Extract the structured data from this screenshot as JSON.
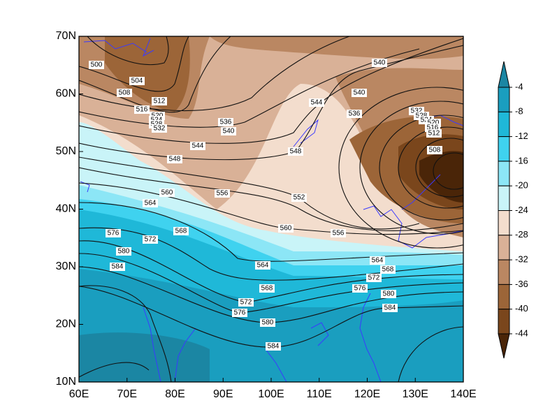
{
  "map": {
    "x_labels": [
      "60E",
      "70E",
      "80E",
      "90E",
      "100E",
      "110E",
      "120E",
      "130E",
      "140E"
    ],
    "y_labels": [
      "10N",
      "20N",
      "30N",
      "40N",
      "50N",
      "60N",
      "70N"
    ],
    "colorbar": {
      "labels": [
        -4,
        -8,
        -12,
        -16,
        -20,
        -24,
        -28,
        -32,
        -36,
        -40,
        -44
      ],
      "colors": [
        "#1b86a3",
        "#1a9ebf",
        "#1fb8d8",
        "#3fd2ef",
        "#8ce6f6",
        "#c9f4f8",
        "#f3ddcd",
        "#d9b197",
        "#ba8762",
        "#9c6538",
        "#7a461c",
        "#4a2508"
      ]
    },
    "contour_labels": [
      500,
      504,
      508,
      512,
      516,
      520,
      524,
      528,
      532,
      536,
      540,
      544,
      548,
      560,
      564,
      556,
      552,
      548,
      544,
      540,
      536,
      540,
      532,
      528,
      524,
      520,
      516,
      512,
      508,
      576,
      572,
      568,
      580,
      584,
      560,
      556,
      564,
      568,
      572,
      576,
      580,
      584,
      564,
      568,
      572,
      576,
      580,
      584
    ]
  }
}
